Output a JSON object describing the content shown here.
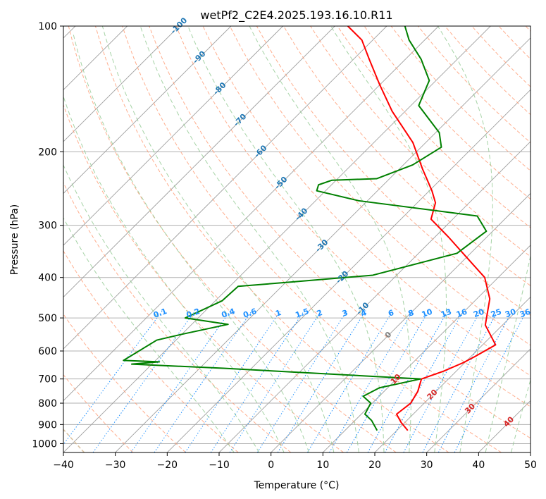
{
  "chart_data": {
    "type": "line",
    "title": "wetPf2_C2E4.2025.193.16.10.R11",
    "xlabel": "Temperature (°C)",
    "ylabel": "Pressure (hPa)",
    "xlim": [
      -40,
      50
    ],
    "ylim": [
      1050,
      100
    ],
    "y_scale": "log",
    "x_ticks": [
      "−40",
      "−30",
      "−20",
      "−10",
      "0",
      "10",
      "20",
      "30",
      "40",
      "50"
    ],
    "x_tick_values": [
      -40,
      -30,
      -20,
      -10,
      0,
      10,
      20,
      30,
      40,
      50
    ],
    "y_ticks": [
      "100",
      "200",
      "300",
      "400",
      "500",
      "600",
      "700",
      "800",
      "900",
      "1000"
    ],
    "y_tick_values": [
      100,
      200,
      300,
      400,
      500,
      600,
      700,
      800,
      900,
      1000
    ],
    "grid": true,
    "series": [
      {
        "name": "",
        "role": "temperature",
        "color": "#ff0000",
        "points": [
          [
            22.1,
            930
          ],
          [
            19.3,
            890
          ],
          [
            16.8,
            850
          ],
          [
            17.4,
            800
          ],
          [
            16.5,
            750
          ],
          [
            14.8,
            700
          ],
          [
            17.6,
            670
          ],
          [
            19.7,
            640
          ],
          [
            20.7,
            620
          ],
          [
            22.5,
            580
          ],
          [
            16.7,
            520
          ],
          [
            12.5,
            450
          ],
          [
            7.4,
            400
          ],
          [
            0.4,
            360
          ],
          [
            -7.4,
            320
          ],
          [
            -14.2,
            290
          ],
          [
            -16.5,
            265
          ],
          [
            -19.5,
            248
          ],
          [
            -25.5,
            220
          ],
          [
            -32.5,
            190
          ],
          [
            -42.5,
            160
          ],
          [
            -50.1,
            138
          ],
          [
            -57.0,
            120
          ],
          [
            -62.1,
            108
          ],
          [
            -67.5,
            100
          ]
        ]
      },
      {
        "name": "",
        "role": "dewpoint",
        "color": "#008000",
        "points": [
          [
            16.2,
            930
          ],
          [
            13.2,
            880
          ],
          [
            10.7,
            850
          ],
          [
            9.7,
            800
          ],
          [
            6.9,
            770
          ],
          [
            8.4,
            735
          ],
          [
            14.6,
            700
          ],
          [
            -25.4,
            660
          ],
          [
            -43.9,
            645
          ],
          [
            -39.0,
            637
          ],
          [
            -46.2,
            632
          ],
          [
            -43.7,
            565
          ],
          [
            -40.2,
            548
          ],
          [
            -33.0,
            518
          ],
          [
            -42.5,
            500
          ],
          [
            -38.7,
            455
          ],
          [
            -38.4,
            420
          ],
          [
            -28.8,
            410
          ],
          [
            -14.6,
            395
          ],
          [
            -2.6,
            350
          ],
          [
            -1.2,
            310
          ],
          [
            -5.9,
            285
          ],
          [
            -31.7,
            262
          ],
          [
            -41.7,
            248
          ],
          [
            -42.5,
            240
          ],
          [
            -40.8,
            234
          ],
          [
            -32.5,
            232
          ],
          [
            -28.2,
            215
          ],
          [
            -26.1,
            195
          ],
          [
            -29.3,
            180
          ],
          [
            -38.5,
            155
          ],
          [
            -41.3,
            135
          ],
          [
            -47.0,
            120
          ],
          [
            -53.0,
            108
          ],
          [
            -56.5,
            100
          ]
        ]
      }
    ],
    "isotherm_labels": [
      "-100",
      "-90",
      "-80",
      "-70",
      "-60",
      "-50",
      "-40",
      "-30",
      "-20",
      "-10",
      "0",
      "10",
      "20",
      "30",
      "40"
    ],
    "isotherm_label_values": [
      -100,
      -90,
      -80,
      -70,
      -60,
      -50,
      -40,
      -30,
      -20,
      -10,
      0,
      10,
      20,
      30,
      40
    ],
    "mixing_ratio_labels": [
      "0.1",
      "0.2",
      "0.4",
      "0.6",
      "1",
      "1.5",
      "2",
      "3",
      "4",
      "6",
      "8",
      "10",
      "13",
      "16",
      "20",
      "25",
      "30",
      "36"
    ],
    "mixing_ratio_values": [
      0.1,
      0.2,
      0.4,
      0.6,
      1,
      1.5,
      2,
      3,
      4,
      6,
      8,
      10,
      13,
      16,
      20,
      25,
      30,
      36
    ],
    "colors": {
      "temperature": "#ff0000",
      "dewpoint": "#008000",
      "isotherm": "#a0a0a0",
      "dry_adiabat": "#ffa07a",
      "moist_adiabat": "#90c890",
      "mixing_ratio": "#1e90ff",
      "lcl_curve": "#d2b48c",
      "iso_label_cold": "#1f77b4",
      "iso_label_zero": "#808080",
      "iso_label_warm": "#d62728",
      "mixing_label": "#1e90ff"
    }
  }
}
